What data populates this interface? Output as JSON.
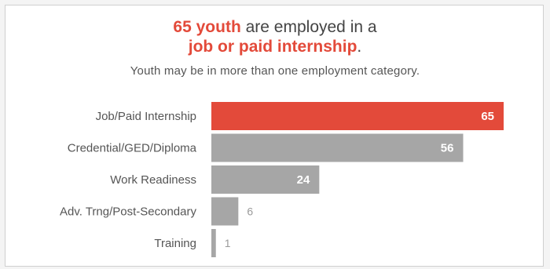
{
  "colors": {
    "accent": "#e34a3a",
    "bar": "#a6a6a6",
    "text": "#444444"
  },
  "title_parts": {
    "number": "65 youth",
    "middle": " are employed in a ",
    "highlight": "job or paid internship",
    "end": "."
  },
  "chart_data": {
    "type": "bar",
    "orientation": "horizontal",
    "title": "65 youth are employed in a job or paid internship.",
    "subtitle": "Youth may be in more than one employment category.",
    "categories": [
      "Job/Paid Internship",
      "Credential/GED/Diploma",
      "Work Readiness",
      "Adv. Trng/Post-Secondary",
      "Training"
    ],
    "values": [
      65,
      56,
      24,
      6,
      1
    ],
    "highlight_index": 0,
    "xlim": [
      0,
      65
    ],
    "grid": false,
    "legend": "none"
  }
}
